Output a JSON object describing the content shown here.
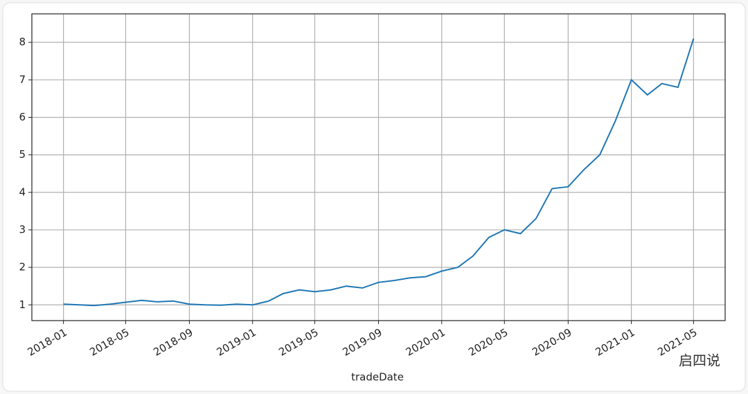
{
  "chart_data": {
    "type": "line",
    "x_label": "tradeDate",
    "watermark": "启四说",
    "x": [
      "2018-01",
      "2018-02",
      "2018-03",
      "2018-04",
      "2018-05",
      "2018-06",
      "2018-07",
      "2018-08",
      "2018-09",
      "2018-10",
      "2018-11",
      "2018-12",
      "2019-01",
      "2019-02",
      "2019-03",
      "2019-04",
      "2019-05",
      "2019-06",
      "2019-07",
      "2019-08",
      "2019-09",
      "2019-10",
      "2019-11",
      "2019-12",
      "2020-01",
      "2020-02",
      "2020-03",
      "2020-04",
      "2020-05",
      "2020-06",
      "2020-07",
      "2020-08",
      "2020-09",
      "2020-10",
      "2020-11",
      "2020-12",
      "2021-01",
      "2021-02",
      "2021-03",
      "2021-04",
      "2021-05"
    ],
    "series": [
      {
        "color": "#1f77b4",
        "values": [
          1.02,
          1.0,
          0.98,
          1.02,
          1.07,
          1.12,
          1.08,
          1.1,
          1.02,
          1.0,
          0.99,
          1.02,
          1.0,
          1.1,
          1.3,
          1.4,
          1.35,
          1.4,
          1.5,
          1.45,
          1.6,
          1.65,
          1.72,
          1.75,
          1.9,
          2.0,
          2.3,
          2.8,
          3.0,
          2.9,
          3.3,
          4.1,
          4.15,
          4.6,
          5.0,
          5.9,
          7.0,
          6.6,
          6.9,
          6.8,
          8.1
        ]
      }
    ],
    "xlim": [
      "2017-11",
      "2021-07"
    ],
    "xticks": [
      "2018-01",
      "2018-05",
      "2018-09",
      "2019-01",
      "2019-05",
      "2019-09",
      "2020-01",
      "2020-05",
      "2020-09",
      "2021-01",
      "2021-05"
    ],
    "ylim": [
      0.58,
      8.76
    ],
    "yticks": [
      1,
      2,
      3,
      4,
      5,
      6,
      7,
      8
    ],
    "grid": true
  }
}
